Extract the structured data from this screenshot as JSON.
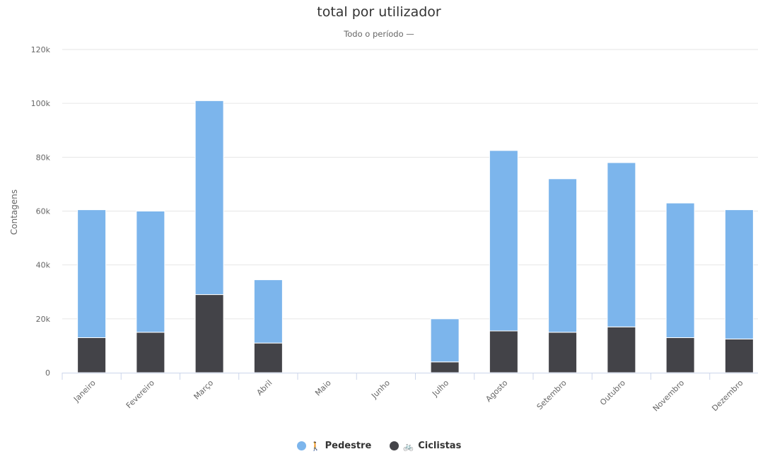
{
  "chart_data": {
    "type": "bar",
    "stacked": true,
    "title": "total por utilizador",
    "subtitle": "Todo o período  —",
    "ylabel": "Contagens",
    "xlabel": "",
    "ylim": [
      0,
      120000
    ],
    "y_ticks": [
      0,
      20000,
      40000,
      60000,
      80000,
      100000,
      120000
    ],
    "y_tick_labels": [
      "0",
      "20k",
      "40k",
      "60k",
      "80k",
      "100k",
      "120k"
    ],
    "grid": true,
    "legend_position": "bottom",
    "categories": [
      "Janeiro",
      "Fevereiro",
      "Março",
      "Abril",
      "Maio",
      "Junho",
      "Julho",
      "Agosto",
      "Setembro",
      "Outubro",
      "Novembro",
      "Dezembro"
    ],
    "series": [
      {
        "name": "Ciclistas",
        "color": "#434348",
        "icon": "bicycle-icon",
        "values": [
          13000,
          15000,
          29000,
          11000,
          0,
          0,
          4000,
          15500,
          15000,
          17000,
          13000,
          12500
        ]
      },
      {
        "name": "Pedestre",
        "color": "#7cb5ec",
        "icon": "pedestrian-icon",
        "values": [
          47500,
          45000,
          72000,
          23500,
          0,
          0,
          16000,
          67000,
          57000,
          61000,
          50000,
          48000
        ]
      }
    ]
  },
  "legend": {
    "items": [
      {
        "label": "Pedestre",
        "color": "#7cb5ec",
        "icon": "pedestrian-icon",
        "glyph": "🚶"
      },
      {
        "label": "Ciclistas",
        "color": "#434348",
        "icon": "bicycle-icon",
        "glyph": "🚲"
      }
    ]
  }
}
